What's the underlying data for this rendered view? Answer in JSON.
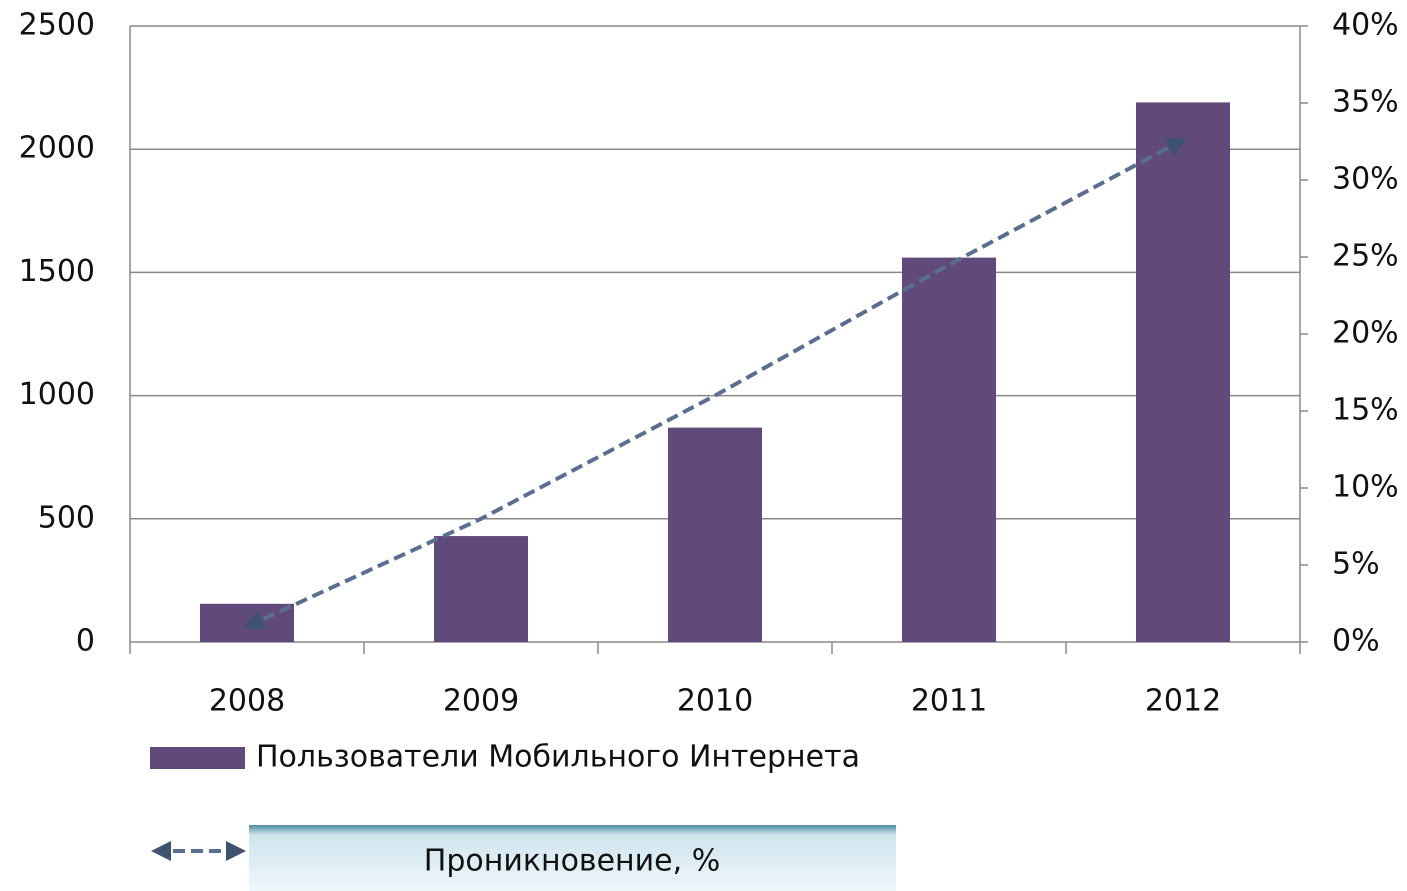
{
  "chart_data": {
    "type": "bar",
    "categories": [
      "2008",
      "2009",
      "2010",
      "2011",
      "2012"
    ],
    "series": [
      {
        "name": "Пользователи Мобильного Интернета",
        "color": "#604a7b",
        "values": [
          155,
          430,
          870,
          1560,
          2190
        ]
      },
      {
        "name": "Проникновение, %",
        "color": "#5a6f8f",
        "axis": "y2",
        "type": "line",
        "values": [
          1,
          8,
          16,
          24.5,
          32.6
        ]
      }
    ],
    "ylim": [
      0,
      2500
    ],
    "yticks": [
      0,
      500,
      1000,
      1500,
      2000,
      2500
    ],
    "y2lim": [
      0,
      40
    ],
    "y2ticks": [
      {
        "value": 0,
        "label": "0%"
      },
      {
        "value": 5,
        "label": "5%"
      },
      {
        "value": 10,
        "label": "10%"
      },
      {
        "value": 15,
        "label": "15%"
      },
      {
        "value": 20,
        "label": "20%"
      },
      {
        "value": 25,
        "label": "25%"
      },
      {
        "value": 30,
        "label": "30%"
      },
      {
        "value": 35,
        "label": "35%"
      },
      {
        "value": 40,
        "label": "40%"
      }
    ],
    "grid": true
  }
}
